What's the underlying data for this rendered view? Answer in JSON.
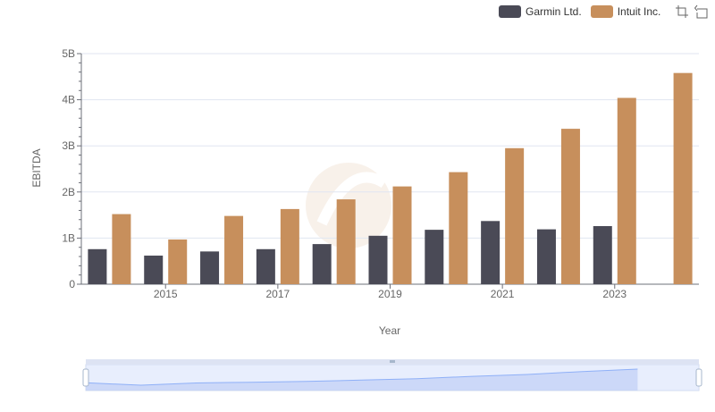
{
  "colors": {
    "garmin": "#4a4a56",
    "intuit": "#c78f5c",
    "grid": "#e0e6f1",
    "axis": "#6e7079",
    "zoom_fill": "#d6e0fb",
    "zoom_line": "#8fb0f7"
  },
  "toolbar": {
    "zoom_icon": "zoom-icon",
    "restore_icon": "restore-icon"
  },
  "chart_data": {
    "type": "bar",
    "xlabel": "Year",
    "ylabel": "EBITDA",
    "ylim": [
      0,
      5000000000
    ],
    "y_ticks": [
      {
        "value": 0,
        "label": "0"
      },
      {
        "value": 1000000000,
        "label": "1B"
      },
      {
        "value": 2000000000,
        "label": "2B"
      },
      {
        "value": 3000000000,
        "label": "3B"
      },
      {
        "value": 4000000000,
        "label": "4B"
      },
      {
        "value": 5000000000,
        "label": "5B"
      }
    ],
    "categories": [
      "2014",
      "2015",
      "2016",
      "2017",
      "2018",
      "2019",
      "2020",
      "2021",
      "2022",
      "2023",
      "2024"
    ],
    "x_tick_labels": [
      "2015",
      "2017",
      "2019",
      "2021",
      "2023"
    ],
    "series": [
      {
        "name": "Garmin Ltd.",
        "color_key": "garmin",
        "values": [
          760000000,
          620000000,
          710000000,
          760000000,
          870000000,
          1050000000,
          1180000000,
          1370000000,
          1190000000,
          1260000000,
          null
        ]
      },
      {
        "name": "Intuit Inc.",
        "color_key": "intuit",
        "values": [
          1520000000,
          970000000,
          1480000000,
          1630000000,
          1840000000,
          2120000000,
          2430000000,
          2950000000,
          3370000000,
          4040000000,
          4580000000
        ]
      }
    ],
    "legend": "top-right",
    "zoom_slider": {
      "start_percent": 0,
      "end_percent": 100
    }
  }
}
